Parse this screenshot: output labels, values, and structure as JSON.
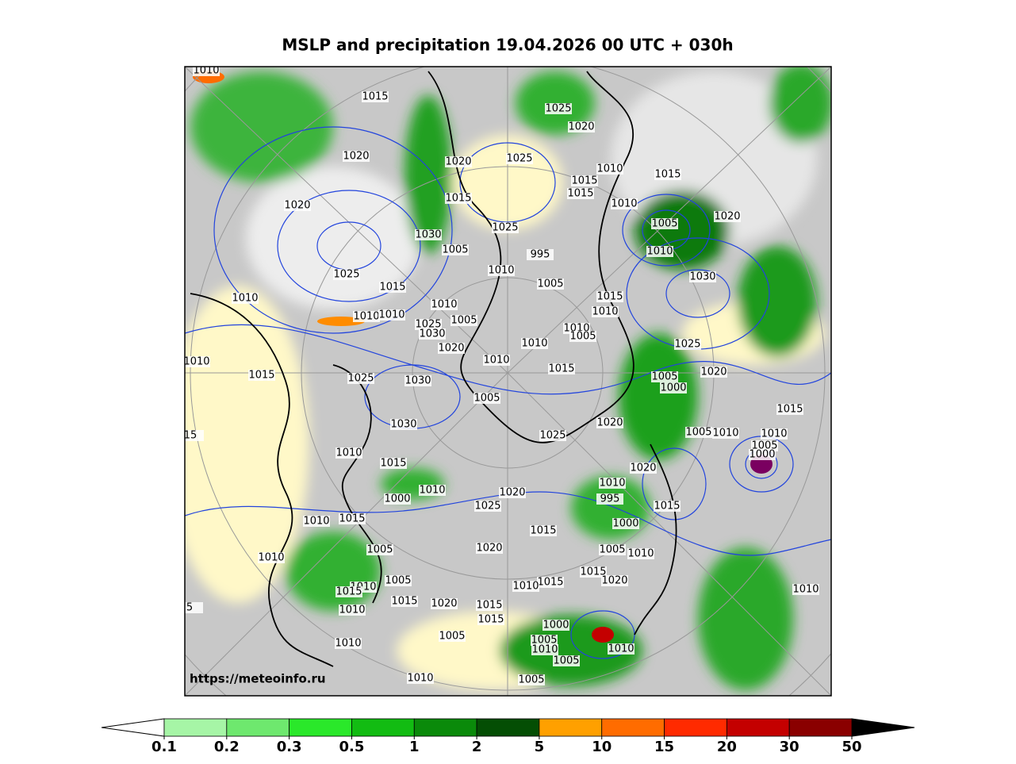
{
  "header": {
    "title": "MSLP and precipitation 19.04.2026 00 UTC + 030h"
  },
  "map": {
    "watermark": "https://meteoinfo.ru",
    "isobar_labels": [
      1010,
      1015,
      1025,
      1020,
      1020,
      1020,
      1025,
      1010,
      1015,
      1015,
      1015,
      1015,
      1020,
      1010,
      1020,
      1005,
      1025,
      1030,
      1005,
      995,
      1010,
      1010,
      1025,
      1030,
      1015,
      1005,
      1010,
      1015,
      1010,
      1010,
      1010,
      1010,
      1005,
      1025,
      1030,
      1010,
      1005,
      1020,
      1010,
      1025,
      1010,
      1010,
      1015,
      1015,
      1025,
      1030,
      1020,
      1005,
      1000,
      1005,
      1015,
      1030,
      1020,
      1025,
      1005,
      1010,
      1010,
      1005,
      1000,
      1010,
      1015,
      1020,
      1010,
      1010,
      1020,
      1000,
      995,
      1025,
      1015,
      1010,
      1015,
      1000,
      1015,
      1005,
      1020,
      1005,
      1010,
      1010,
      1015,
      1005,
      1020,
      1015,
      1010,
      1010,
      1015,
      1010,
      1015,
      1020,
      1015,
      1010,
      1015,
      1000,
      1005,
      1005,
      1010,
      1010,
      1005,
      1010,
      1010,
      1005,
      "15",
      "5"
    ]
  },
  "colorbar": {
    "ticks": [
      0.1,
      0.2,
      0.3,
      0.5,
      1,
      2,
      5,
      10,
      15,
      20,
      30,
      50
    ],
    "colors": [
      "#a6f5a6",
      "#6ee86e",
      "#2ae82a",
      "#12bc12",
      "#0a8a0a",
      "#044e04",
      "#ffa000",
      "#ff6c00",
      "#ff2a00",
      "#c40000",
      "#8a0000"
    ],
    "extend_under": "#ffffff",
    "extend_over": "#000000"
  }
}
